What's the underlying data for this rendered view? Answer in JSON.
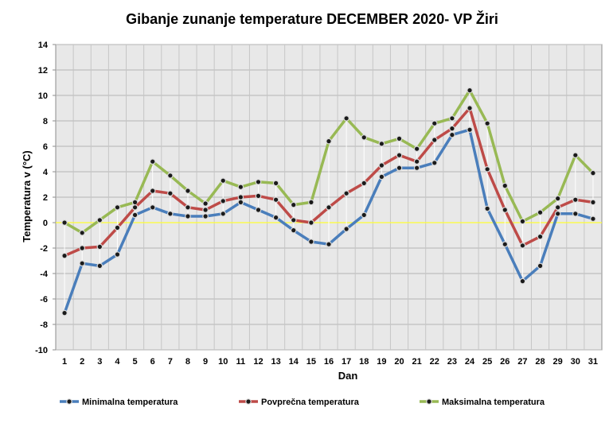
{
  "chart_data": {
    "type": "line",
    "title": "Gibanje zunanje temperature DECEMBER 2020- VP Žiri",
    "xlabel": "Dan",
    "ylabel": "Temperatura v (°C)",
    "ylim": [
      -10,
      14
    ],
    "ytick_step": 2,
    "grid": true,
    "legend_position": "bottom",
    "categories": [
      "1",
      "2",
      "3",
      "4",
      "5",
      "6",
      "7",
      "8",
      "9",
      "10",
      "11",
      "12",
      "13",
      "14",
      "15",
      "16",
      "17",
      "18",
      "19",
      "20",
      "21",
      "22",
      "23",
      "24",
      "25",
      "26",
      "27",
      "28",
      "29",
      "30",
      "31"
    ],
    "series": [
      {
        "name": "Minimalna temperatura",
        "color": "#4a7ebb",
        "values": [
          -7.1,
          -3.2,
          -3.4,
          -2.5,
          0.6,
          1.2,
          0.7,
          0.5,
          0.5,
          0.7,
          1.6,
          1.0,
          0.4,
          -0.6,
          -1.5,
          -1.7,
          -0.5,
          0.6,
          3.6,
          4.3,
          4.3,
          4.7,
          6.9,
          7.3,
          1.1,
          -1.7,
          -4.6,
          -3.4,
          0.7,
          0.7,
          0.3
        ]
      },
      {
        "name": "Povprečna temperatura",
        "color": "#be4b48",
        "values": [
          -2.6,
          -2.0,
          -1.9,
          -0.4,
          1.2,
          2.5,
          2.3,
          1.2,
          1.0,
          1.7,
          2.0,
          2.1,
          1.8,
          0.2,
          0.0,
          1.2,
          2.3,
          3.1,
          4.5,
          5.3,
          4.8,
          6.5,
          7.4,
          9.0,
          4.2,
          1.0,
          -1.8,
          -1.1,
          1.2,
          1.8,
          1.6
        ]
      },
      {
        "name": "Maksimalna temperatura",
        "color": "#98b954",
        "values": [
          0.0,
          -0.8,
          0.2,
          1.2,
          1.6,
          4.8,
          3.7,
          2.5,
          1.5,
          3.3,
          2.8,
          3.2,
          3.1,
          1.4,
          1.6,
          6.4,
          8.2,
          6.7,
          6.2,
          6.6,
          5.8,
          7.8,
          8.2,
          10.4,
          7.8,
          2.9,
          0.1,
          0.8,
          1.9,
          5.3,
          3.9
        ]
      }
    ]
  }
}
